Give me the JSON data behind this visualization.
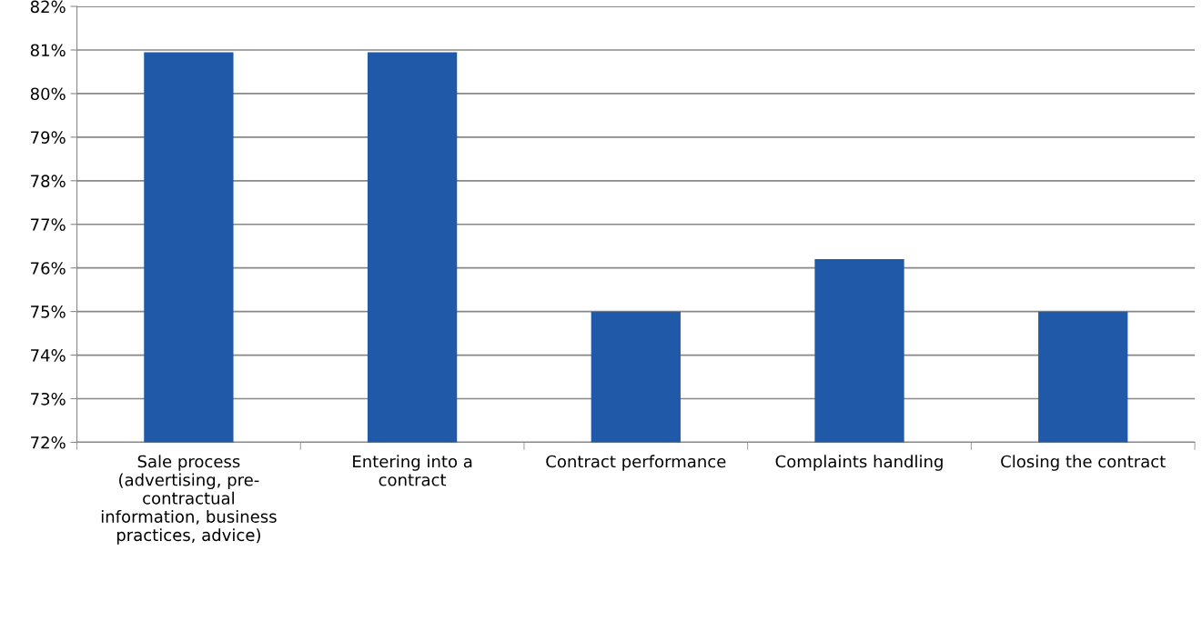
{
  "chart_data": {
    "type": "bar",
    "categories": [
      "Sale process (advertising, pre-contractual information, business practices, advice)",
      "Entering into a contract",
      "Contract performance",
      "Complaints handling",
      "Closing the contract"
    ],
    "values": [
      80.95,
      80.95,
      75,
      76.2,
      75
    ],
    "color": "#2059a8",
    "ylim": [
      72,
      82
    ],
    "yticks": [
      {
        "value": 72,
        "label": "72%"
      },
      {
        "value": 73,
        "label": "73%"
      },
      {
        "value": 74,
        "label": "74%"
      },
      {
        "value": 75,
        "label": "75%"
      },
      {
        "value": 76,
        "label": "76%"
      },
      {
        "value": 77,
        "label": "77%"
      },
      {
        "value": 78,
        "label": "78%"
      },
      {
        "value": 79,
        "label": "79%"
      },
      {
        "value": 80,
        "label": "80%"
      },
      {
        "value": 81,
        "label": "81%"
      },
      {
        "value": 82,
        "label": "82%"
      }
    ],
    "grid": "y",
    "legend": false
  }
}
